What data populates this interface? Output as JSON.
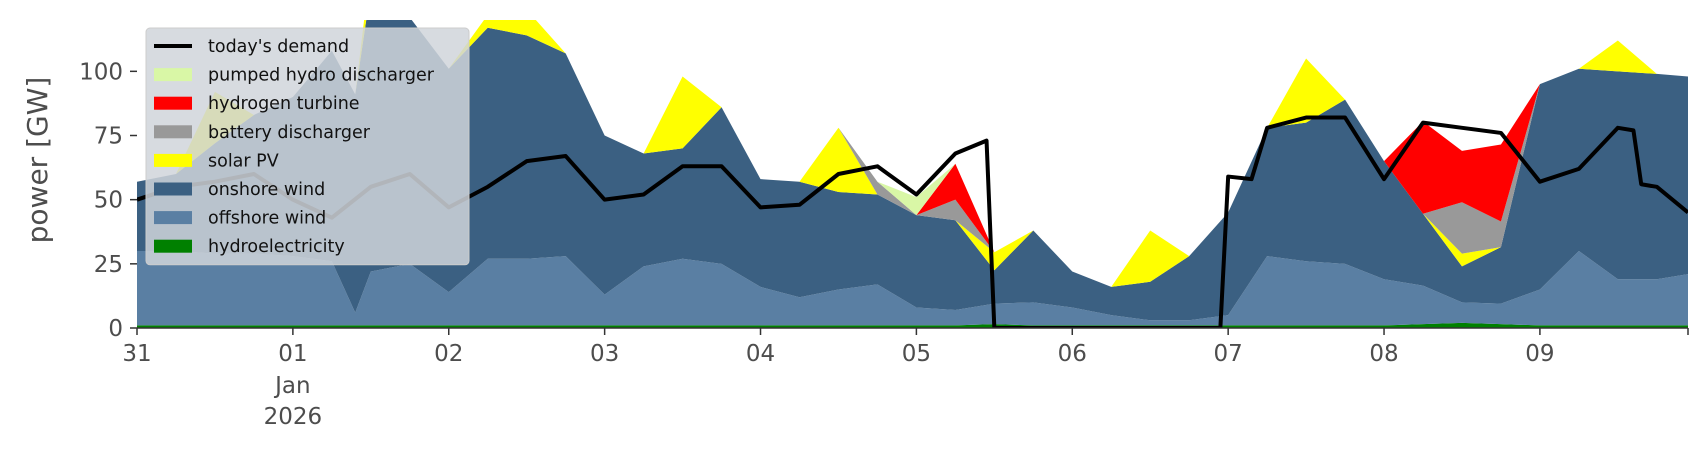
{
  "chart_data": {
    "type": "area",
    "title": "",
    "xlabel": "",
    "ylabel": "power [GW]",
    "xlim": [
      0,
      9.95
    ],
    "ylim": [
      0,
      120
    ],
    "y_ticks": [
      0,
      25,
      50,
      75,
      100
    ],
    "x_ticks": [
      {
        "x": 0,
        "label": "31"
      },
      {
        "x": 1,
        "label": "01",
        "sub": [
          "Jan",
          "2026"
        ]
      },
      {
        "x": 2,
        "label": "02"
      },
      {
        "x": 3,
        "label": "03"
      },
      {
        "x": 4,
        "label": "04"
      },
      {
        "x": 5,
        "label": "05"
      },
      {
        "x": 6,
        "label": "06"
      },
      {
        "x": 7,
        "label": "07"
      },
      {
        "x": 8,
        "label": "08"
      },
      {
        "x": 9,
        "label": "09"
      }
    ],
    "grid": false,
    "legend_position": "top-left",
    "x": [
      0,
      0.25,
      0.5,
      0.75,
      1,
      1.25,
      1.4,
      1.5,
      1.75,
      2,
      2.25,
      2.5,
      2.75,
      3,
      3.25,
      3.5,
      3.75,
      4,
      4.25,
      4.5,
      4.75,
      5,
      5.25,
      5.5,
      5.75,
      6,
      6.25,
      6.5,
      6.75,
      7,
      7.25,
      7.5,
      7.75,
      8,
      8.25,
      8.5,
      8.75,
      9,
      9.25,
      9.5,
      9.75,
      9.95
    ],
    "series": [
      {
        "name": "hydroelectricity",
        "color": "#008000",
        "values": [
          1,
          1,
          1,
          1,
          1,
          1,
          1,
          1,
          1,
          1,
          1,
          1,
          1,
          1,
          1,
          1,
          1,
          1,
          1,
          1,
          1,
          1,
          1,
          1.5,
          1,
          1,
          1,
          1,
          1,
          1,
          1,
          1,
          1,
          1,
          1.5,
          2,
          1.5,
          1,
          1,
          1,
          1,
          1
        ]
      },
      {
        "name": "offshore wind",
        "color": "#5a7fa3",
        "values": [
          29,
          29,
          28,
          28,
          27,
          25,
          5,
          21,
          24,
          13,
          26,
          26,
          27,
          12,
          23,
          26,
          24,
          15,
          11,
          14,
          16,
          7,
          6,
          8,
          9,
          7,
          4,
          2,
          2,
          4,
          27,
          25,
          24,
          18,
          15,
          8,
          8,
          14,
          29,
          18,
          18,
          20
        ]
      },
      {
        "name": "onshore wind",
        "color": "#3b6082",
        "values": [
          27,
          30,
          43,
          54,
          62,
          82,
          85,
          110,
          96,
          87,
          90,
          87,
          79,
          62,
          44,
          43,
          61,
          42,
          45,
          38,
          35,
          36,
          35,
          13,
          28,
          14,
          11,
          15,
          25,
          40,
          50,
          54,
          64,
          46,
          28,
          14,
          22,
          80,
          71,
          81,
          80,
          77
        ]
      },
      {
        "name": "solar PV",
        "color": "#ffff00",
        "values": [
          0,
          0,
          20,
          0,
          0,
          0,
          0,
          10,
          0,
          0,
          5,
          10,
          0,
          0,
          0,
          28,
          0,
          0,
          0,
          25,
          0,
          0,
          0,
          7,
          0,
          0,
          0,
          20,
          0,
          0,
          0,
          25,
          0,
          0,
          0,
          5,
          0,
          0,
          0,
          12,
          0,
          0
        ]
      },
      {
        "name": "battery discharger",
        "color": "#999999",
        "values": [
          0,
          0,
          0,
          0,
          0,
          0,
          0,
          0,
          0,
          0,
          0,
          0,
          0,
          0,
          0,
          0,
          0,
          0,
          0,
          0,
          5,
          0,
          8,
          0,
          0,
          0,
          0,
          0,
          0,
          0,
          0,
          0,
          0,
          0,
          0,
          20,
          10,
          0,
          0,
          0,
          0,
          0
        ]
      },
      {
        "name": "hydrogen turbine",
        "color": "#ff0000",
        "values": [
          0,
          0,
          0,
          0,
          0,
          0,
          0,
          0,
          0,
          0,
          0,
          0,
          0,
          0,
          0,
          0,
          0,
          0,
          0,
          0,
          0,
          0,
          14,
          0,
          0,
          0,
          0,
          0,
          0,
          0,
          0,
          0,
          0,
          0,
          36,
          20,
          30,
          0,
          0,
          0,
          0,
          0
        ]
      },
      {
        "name": "pumped hydro discharger",
        "color": "#d9f7a6",
        "values": [
          0,
          0,
          0,
          0,
          0,
          0,
          0,
          0,
          0,
          0,
          0,
          0,
          0,
          0,
          0,
          0,
          0,
          0,
          0,
          0,
          0,
          7,
          0,
          0,
          0,
          0,
          0,
          0,
          0,
          0,
          0,
          0,
          0,
          0,
          0,
          0,
          0,
          0,
          0,
          0,
          0,
          0
        ]
      }
    ],
    "demand": {
      "name": "today's demand",
      "color": "#000000",
      "points": [
        [
          0,
          50
        ],
        [
          0.25,
          55
        ],
        [
          0.5,
          57
        ],
        [
          0.75,
          60
        ],
        [
          1,
          50
        ],
        [
          1.25,
          43
        ],
        [
          1.5,
          55
        ],
        [
          1.75,
          60
        ],
        [
          2,
          47
        ],
        [
          2.25,
          55
        ],
        [
          2.5,
          65
        ],
        [
          2.75,
          67
        ],
        [
          3,
          50
        ],
        [
          3.25,
          52
        ],
        [
          3.5,
          63
        ],
        [
          3.75,
          63
        ],
        [
          4,
          47
        ],
        [
          4.25,
          48
        ],
        [
          4.5,
          60
        ],
        [
          4.75,
          63
        ],
        [
          5,
          52
        ],
        [
          5.25,
          68
        ],
        [
          5.45,
          73
        ],
        [
          5.5,
          0
        ],
        [
          6.95,
          0
        ],
        [
          7,
          59
        ],
        [
          7.15,
          58
        ],
        [
          7.25,
          78
        ],
        [
          7.5,
          82
        ],
        [
          7.75,
          82
        ],
        [
          8,
          58
        ],
        [
          8.25,
          80
        ],
        [
          8.5,
          78
        ],
        [
          8.75,
          76
        ],
        [
          9,
          57
        ],
        [
          9.25,
          62
        ],
        [
          9.5,
          78
        ],
        [
          9.6,
          77
        ],
        [
          9.65,
          56
        ],
        [
          9.75,
          55
        ],
        [
          9.95,
          45
        ]
      ]
    }
  }
}
